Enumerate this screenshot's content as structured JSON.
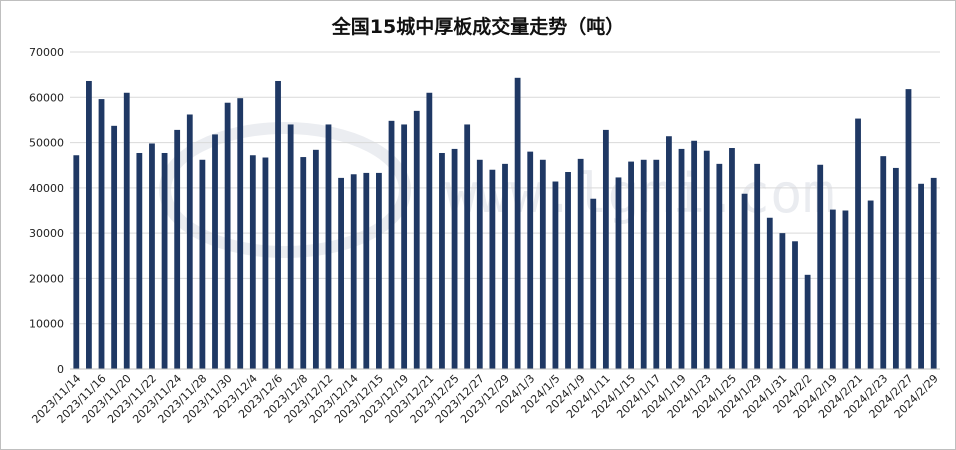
{
  "chart_data": {
    "type": "bar",
    "title": "全国15城中厚板成交量走势（吨）",
    "xlabel": "",
    "ylabel": "",
    "ylim": [
      0,
      70000
    ],
    "yticks": [
      0,
      10000,
      20000,
      30000,
      40000,
      50000,
      60000,
      70000
    ],
    "grid": true,
    "bar_color": "#1f3864",
    "watermark": "www.lgmi.com",
    "tick_labels": [
      "2023/11/14",
      "2023/11/16",
      "2023/11/20",
      "2023/11/22",
      "2023/11/24",
      "2023/11/28",
      "2023/11/30",
      "2023/12/4",
      "2023/12/6",
      "2023/12/8",
      "2023/12/12",
      "2023/12/14",
      "2023/12/15",
      "2023/12/19",
      "2023/12/21",
      "2023/12/25",
      "2023/12/27",
      "2023/12/29",
      "2024/1/3",
      "2024/1/5",
      "2024/1/9",
      "2024/1/11",
      "2024/1/15",
      "2024/1/17",
      "2024/1/19",
      "2024/1/23",
      "2024/1/25",
      "2024/1/29",
      "2024/1/31",
      "2024/2/2",
      "2024/2/19",
      "2024/2/21",
      "2024/2/23",
      "2024/2/27",
      "2024/2/29"
    ],
    "values": [
      47200,
      63600,
      59600,
      53700,
      61000,
      47700,
      49800,
      47700,
      52800,
      56200,
      46200,
      51800,
      58800,
      59800,
      47200,
      46700,
      63600,
      54000,
      46800,
      48400,
      54000,
      42200,
      43000,
      43300,
      43300,
      54800,
      54000,
      57000,
      61000,
      47700,
      48600,
      54000,
      46200,
      44000,
      45300,
      64300,
      48000,
      46200,
      41400,
      43500,
      46400,
      37600,
      52800,
      42300,
      45800,
      46200,
      46200,
      51400,
      48600,
      50400,
      48200,
      45300,
      48800,
      38700,
      45300,
      33400,
      30000,
      28200,
      20800,
      45100,
      35200,
      35000,
      55300,
      37200,
      47000,
      44400,
      61800,
      40900,
      42200
    ]
  }
}
